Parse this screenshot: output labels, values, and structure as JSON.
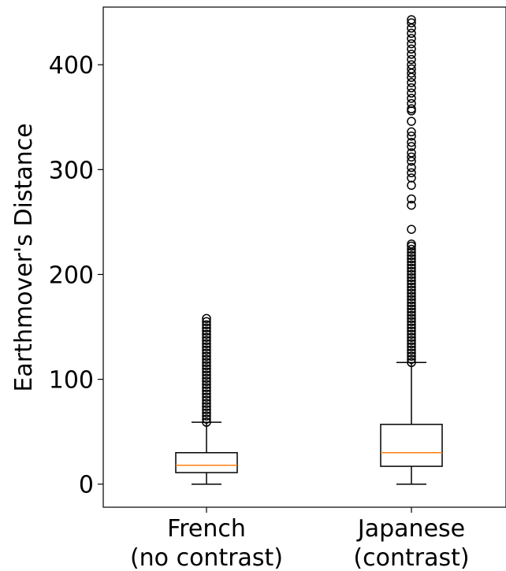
{
  "chart_data": {
    "type": "boxplot",
    "title": "",
    "xlabel": "",
    "ylabel": "Earthmover's Distance",
    "ylim": [
      -22,
      455
    ],
    "yticks": [
      0,
      100,
      200,
      300,
      400
    ],
    "grid": false,
    "colors": {
      "box": "#000000",
      "median": "#ff7f0e",
      "outlier": "#000000"
    },
    "categories": [
      {
        "label_line1": "French",
        "label_line2": "(no contrast)"
      },
      {
        "label_line1": "Japanese",
        "label_line2": "(contrast)"
      }
    ],
    "series": [
      {
        "whisker_low": 0,
        "q1": 11,
        "median": 18,
        "q3": 30,
        "whisker_high": 59,
        "outliers": [
          59,
          62,
          65,
          68,
          71,
          74,
          77,
          80,
          83,
          86,
          89,
          92,
          95,
          98,
          101,
          104,
          107,
          110,
          113,
          116,
          119,
          122,
          125,
          128,
          131,
          134,
          137,
          140,
          143,
          146,
          149,
          152,
          155,
          158
        ]
      },
      {
        "whisker_low": 0,
        "q1": 17,
        "median": 30,
        "q3": 57,
        "whisker_high": 116,
        "outliers": [
          116,
          119,
          122,
          125,
          128,
          131,
          134,
          137,
          140,
          143,
          146,
          149,
          152,
          155,
          158,
          161,
          164,
          167,
          170,
          173,
          176,
          179,
          182,
          185,
          188,
          191,
          194,
          197,
          200,
          203,
          206,
          209,
          212,
          215,
          218,
          221,
          224,
          227,
          229,
          243,
          266,
          272,
          285,
          292,
          297,
          302,
          308,
          312,
          316,
          322,
          326,
          332,
          336,
          346,
          356,
          358,
          363,
          368,
          373,
          378,
          383,
          388,
          392,
          396,
          400,
          405,
          410,
          415,
          420,
          425,
          430,
          435,
          440,
          443
        ]
      }
    ]
  }
}
